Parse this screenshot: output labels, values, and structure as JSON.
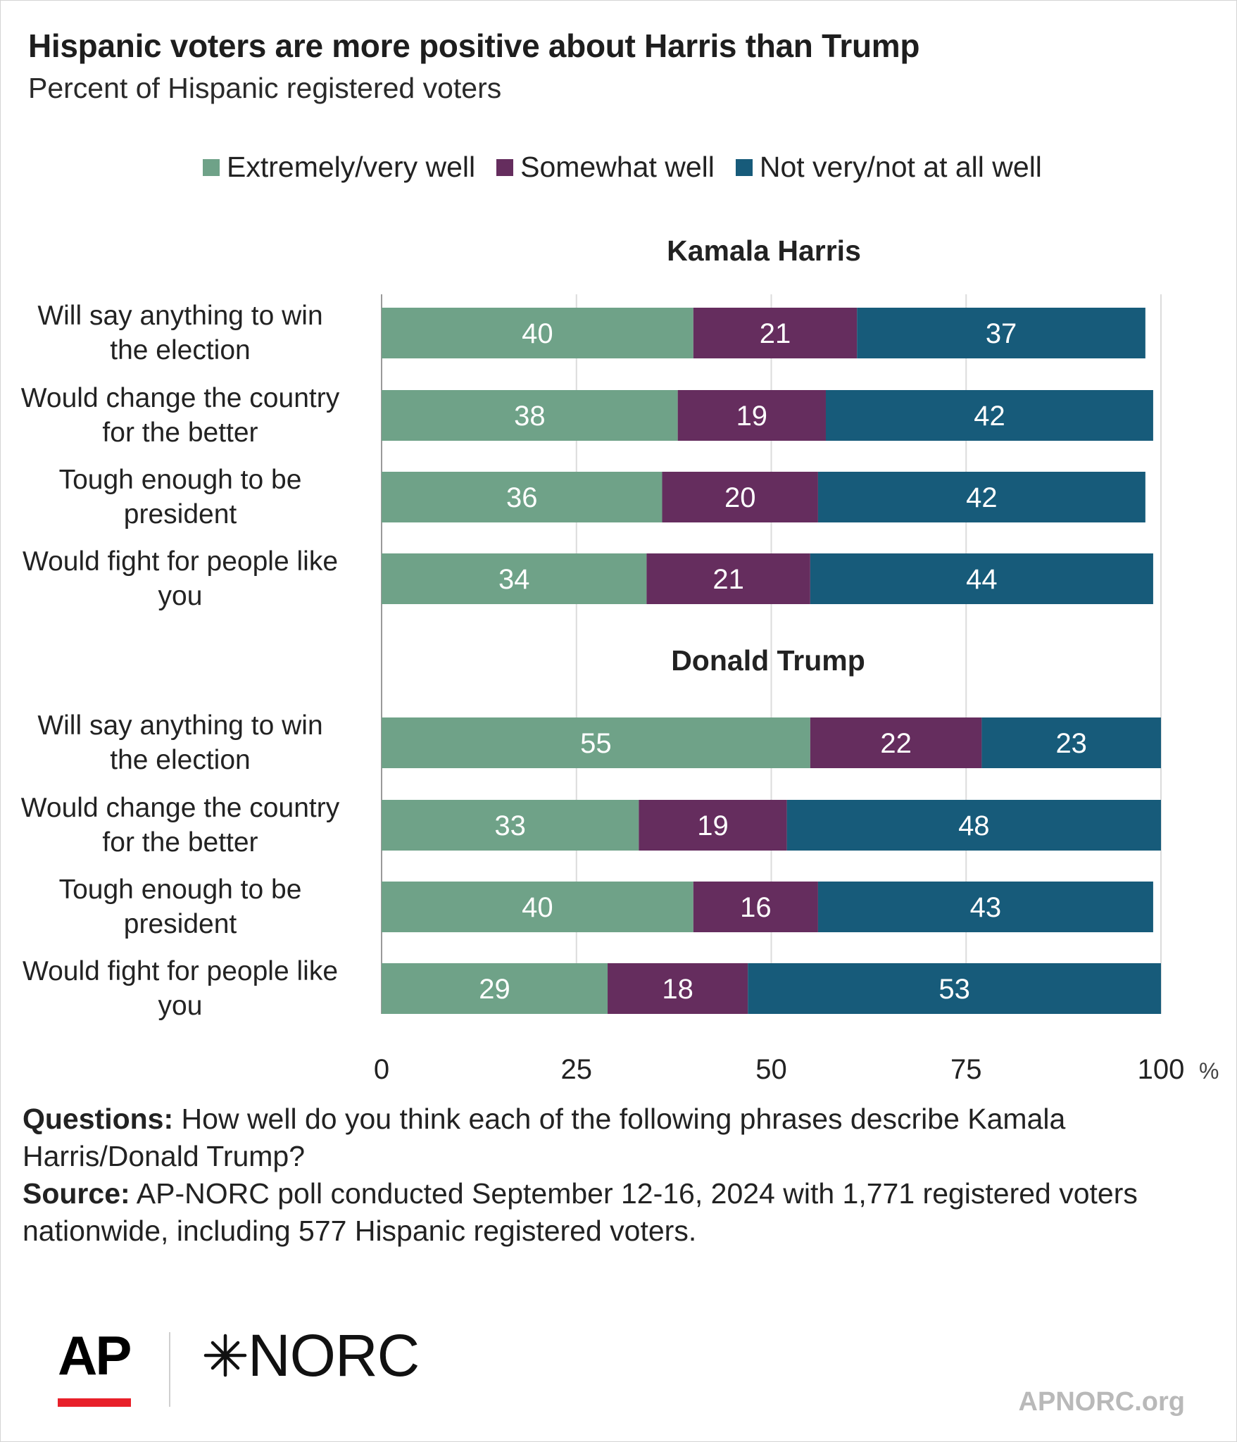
{
  "title": "Hispanic voters are more positive about Harris than Trump",
  "subtitle": "Percent of Hispanic registered voters",
  "legend": [
    {
      "label": "Extremely/very well",
      "color": "#6fa288"
    },
    {
      "label": "Somewhat well",
      "color": "#652d5e"
    },
    {
      "label": "Not very/not at all well",
      "color": "#175b7a"
    }
  ],
  "chart_data": {
    "type": "bar",
    "orientation": "horizontal",
    "stacked": true,
    "xlim": [
      0,
      100
    ],
    "x_ticks": [
      "0",
      "25",
      "50",
      "75",
      "100"
    ],
    "x_unit": "%",
    "grid": true,
    "legend_position": "top",
    "groups": [
      {
        "name": "Kamala Harris",
        "categories": [
          "Will say anything to win the election",
          "Would change the country for the better",
          "Tough enough to be president",
          "Would fight for people like you"
        ],
        "series": [
          {
            "name": "Extremely/very well",
            "values": [
              40,
              38,
              36,
              34
            ]
          },
          {
            "name": "Somewhat well",
            "values": [
              21,
              19,
              20,
              21
            ]
          },
          {
            "name": "Not very/not at all well",
            "values": [
              37,
              42,
              42,
              44
            ]
          }
        ]
      },
      {
        "name": "Donald Trump",
        "categories": [
          "Will say anything to win the election",
          "Would change the country for the better",
          "Tough enough to be president",
          "Would fight for people like you"
        ],
        "series": [
          {
            "name": "Extremely/very well",
            "values": [
              55,
              33,
              40,
              29
            ]
          },
          {
            "name": "Somewhat well",
            "values": [
              22,
              19,
              16,
              18
            ]
          },
          {
            "name": "Not very/not at all well",
            "values": [
              23,
              48,
              43,
              53
            ]
          }
        ]
      }
    ]
  },
  "notes": {
    "questions_label": "Questions:",
    "questions_text": " How well do you think each of the following phrases describe Kamala Harris/Donald Trump?",
    "source_label": "Source:",
    "source_text": " AP-NORC poll conducted September 12-16, 2024 with 1,771 registered voters nationwide, including 577 Hispanic registered voters."
  },
  "logos": {
    "ap": "AP",
    "norc": "NORC",
    "url": "APNORC.org"
  }
}
